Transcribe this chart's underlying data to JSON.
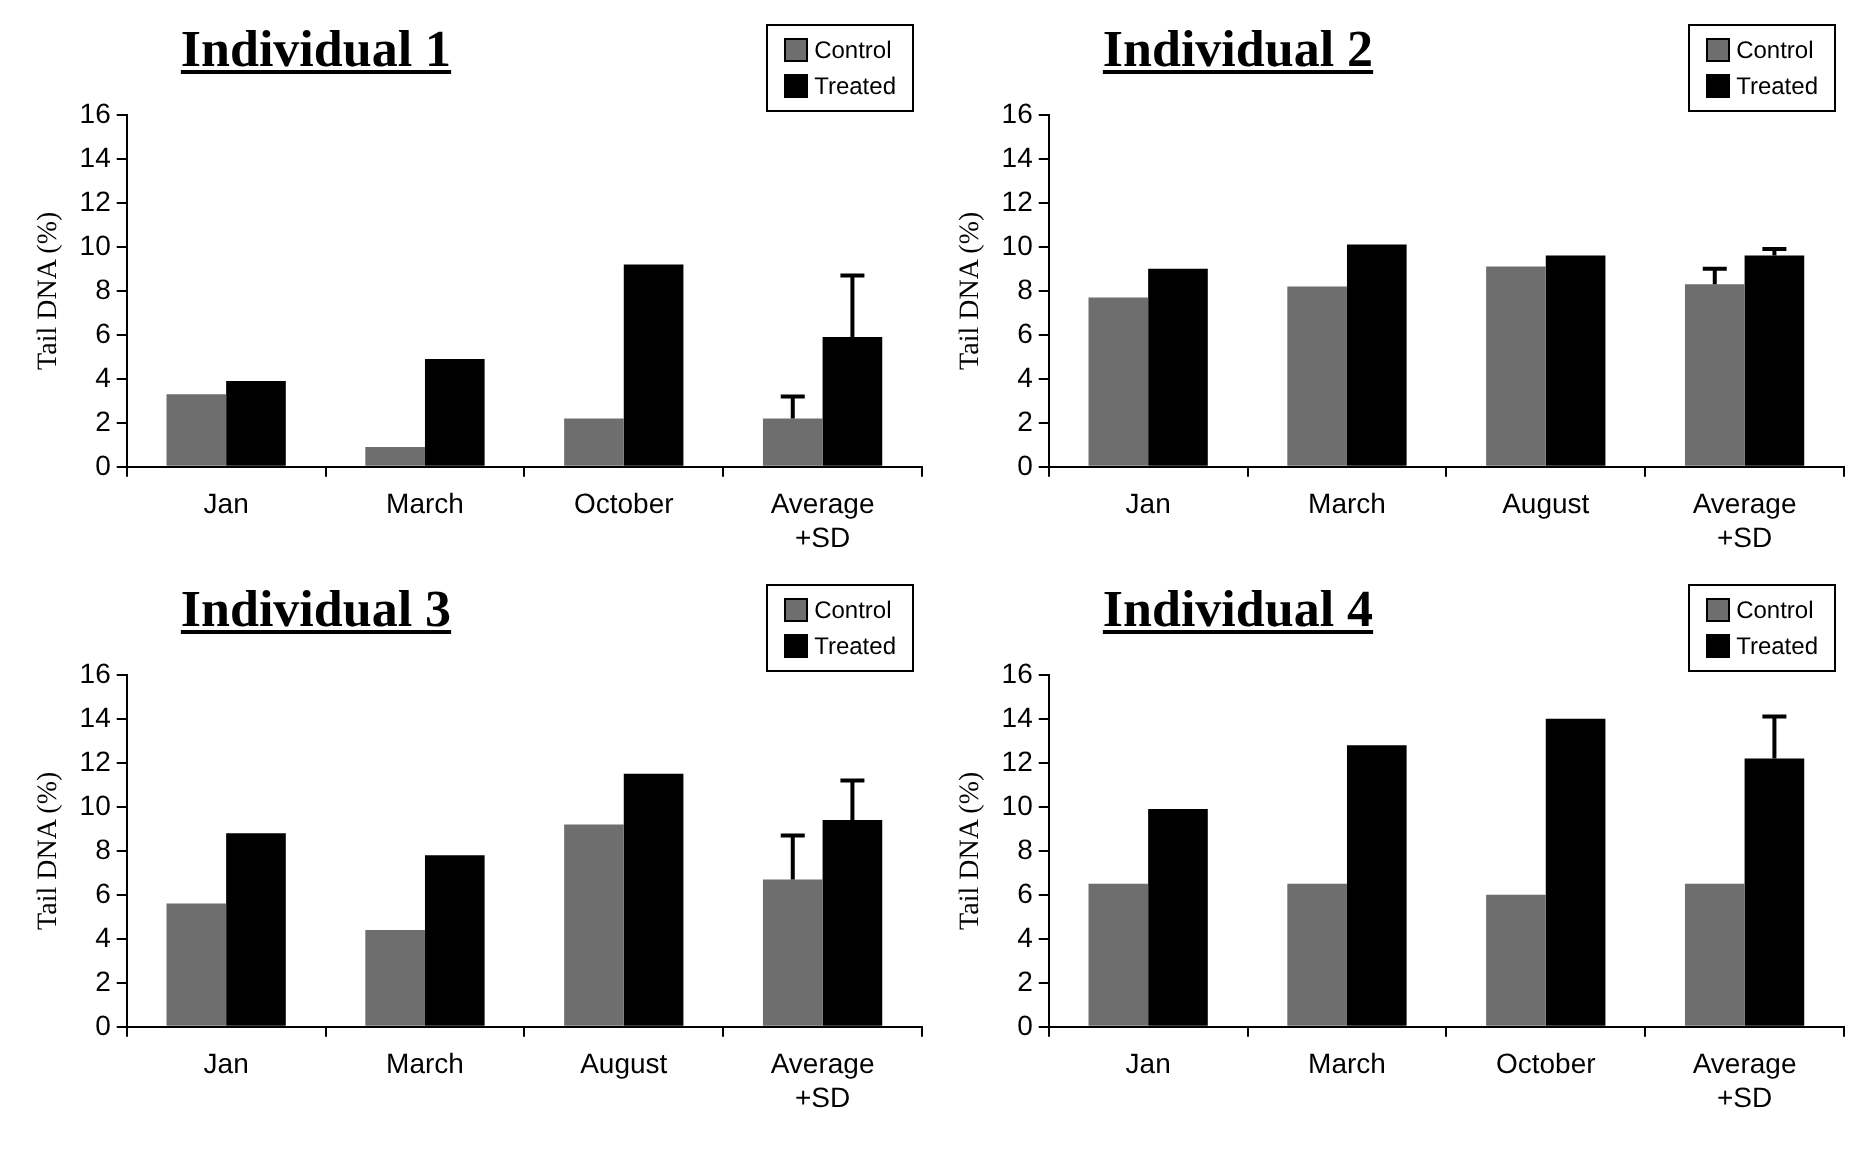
{
  "chart_data": [
    {
      "type": "bar",
      "title": "Individual 1",
      "ylabel": "Tail DNA (%)",
      "categories": [
        "Jan",
        "March",
        "October",
        "Average +SD"
      ],
      "ylim": [
        0,
        16
      ],
      "yticks": [
        0,
        2,
        4,
        6,
        8,
        10,
        12,
        14,
        16
      ],
      "grid": false,
      "legend": "top right",
      "series": [
        {
          "name": "Control",
          "color": "#6e6e6e",
          "values": [
            3.3,
            0.9,
            2.2,
            2.2
          ],
          "errors": [
            null,
            null,
            null,
            [
              2.2,
              3.2
            ]
          ]
        },
        {
          "name": "Treated",
          "color": "#000000",
          "values": [
            3.9,
            4.9,
            9.2,
            5.9
          ],
          "errors": [
            null,
            null,
            null,
            [
              5.9,
              8.7
            ]
          ]
        }
      ]
    },
    {
      "type": "bar",
      "title": "Individual 2",
      "ylabel": "Tail DNA (%)",
      "categories": [
        "Jan",
        "March",
        "August",
        "Average +SD"
      ],
      "ylim": [
        0,
        16
      ],
      "yticks": [
        0,
        2,
        4,
        6,
        8,
        10,
        12,
        14,
        16
      ],
      "grid": false,
      "legend": "top right",
      "series": [
        {
          "name": "Control",
          "color": "#6e6e6e",
          "values": [
            7.7,
            8.2,
            9.1,
            8.3
          ],
          "errors": [
            null,
            null,
            null,
            [
              8.3,
              9.0
            ]
          ]
        },
        {
          "name": "Treated",
          "color": "#000000",
          "values": [
            9.0,
            10.1,
            9.6,
            9.6
          ],
          "errors": [
            null,
            null,
            null,
            [
              9.6,
              9.9
            ]
          ]
        }
      ]
    },
    {
      "type": "bar",
      "title": "Individual 3",
      "ylabel": "Tail DNA (%)",
      "categories": [
        "Jan",
        "March",
        "August",
        "Average +SD"
      ],
      "ylim": [
        0,
        16
      ],
      "yticks": [
        0,
        2,
        4,
        6,
        8,
        10,
        12,
        14,
        16
      ],
      "grid": false,
      "legend": "top right",
      "series": [
        {
          "name": "Control",
          "color": "#6e6e6e",
          "values": [
            5.6,
            4.4,
            9.2,
            6.7
          ],
          "errors": [
            null,
            null,
            null,
            [
              6.7,
              8.7
            ]
          ]
        },
        {
          "name": "Treated",
          "color": "#000000",
          "values": [
            8.8,
            7.8,
            11.5,
            9.4
          ],
          "errors": [
            null,
            null,
            null,
            [
              9.4,
              11.2
            ]
          ]
        }
      ]
    },
    {
      "type": "bar",
      "title": "Individual 4",
      "ylabel": "Tail DNA (%)",
      "categories": [
        "Jan",
        "March",
        "October",
        "Average +SD"
      ],
      "ylim": [
        0,
        16
      ],
      "yticks": [
        0,
        2,
        4,
        6,
        8,
        10,
        12,
        14,
        16
      ],
      "grid": false,
      "legend": "top right",
      "series": [
        {
          "name": "Control",
          "color": "#6e6e6e",
          "values": [
            6.5,
            6.5,
            6.0,
            6.5
          ]
        },
        {
          "name": "Treated",
          "color": "#000000",
          "values": [
            9.9,
            12.8,
            14.0,
            12.2
          ],
          "errors": [
            null,
            null,
            null,
            [
              12.2,
              14.1
            ]
          ]
        }
      ]
    }
  ]
}
